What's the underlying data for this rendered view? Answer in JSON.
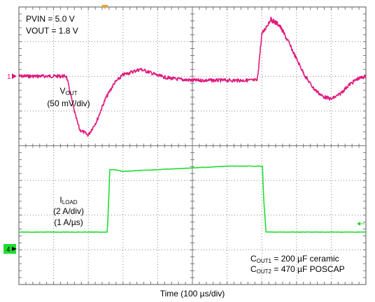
{
  "chart_data": {
    "type": "line",
    "xlabel": "Time (100 µs/div)",
    "divisions": {
      "x": 10,
      "y": 8
    },
    "annotations": {
      "pvin": "PVIN = 5.0 V",
      "vout": "VOUT = 1.8 V",
      "cout1_prefix": "C",
      "cout1_sub": "OUT1",
      "cout1_rest": " = 200 µF ceramic",
      "cout2_prefix": "C",
      "cout2_sub": "OUT2",
      "cout2_rest": " = 470 µF POSCAP"
    },
    "series": [
      {
        "name_prefix": "V",
        "name_sub": "OUT",
        "scale": "(50 mV/div)",
        "channel": "1",
        "color": "#e0197d",
        "unit": "mV",
        "x": [
          0,
          50,
          100,
          125,
          137,
          162,
          175,
          200,
          225,
          237,
          250,
          275,
          300,
          350,
          375,
          400,
          425,
          450,
          475,
          500,
          525,
          600,
          625,
          650,
          687,
          700,
          725,
          750,
          775,
          800,
          825,
          850,
          875,
          900,
          925,
          950,
          975,
          1000
        ],
        "y": [
          0,
          0,
          0,
          0,
          0,
          -55,
          -77,
          -85,
          -64,
          -48,
          -32,
          -10,
          2,
          10,
          6,
          1,
          -2,
          -4,
          -5,
          -6,
          -6,
          -6,
          -6,
          -6,
          -6,
          60,
          82,
          74,
          51,
          25,
          0,
          -18,
          -29,
          -33,
          -26,
          -13,
          -4,
          0
        ]
      },
      {
        "name_prefix": "I",
        "name_sub": "LOAD",
        "scale": "(2 A/div)",
        "rate": "(1 A/µs)",
        "channel": "4",
        "color": "#22dd33",
        "unit": "A",
        "x": [
          0,
          100,
          200,
          250,
          255,
          262,
          275,
          300,
          400,
          500,
          600,
          687,
          700,
          702,
          705,
          712,
          725,
          800,
          900,
          1000
        ],
        "y": [
          0,
          0,
          0,
          0,
          0,
          3.6,
          3.6,
          3.5,
          3.6,
          3.7,
          3.8,
          3.8,
          3.8,
          3.8,
          2.0,
          0,
          0,
          0,
          0,
          0
        ]
      }
    ]
  }
}
